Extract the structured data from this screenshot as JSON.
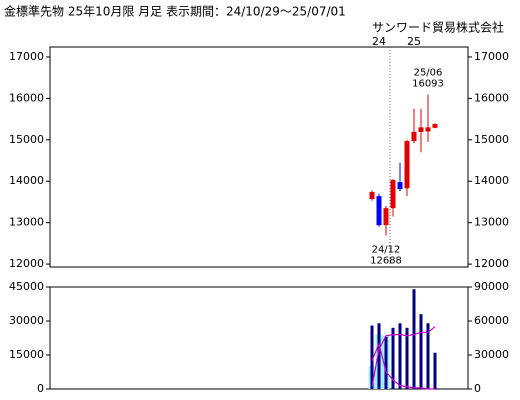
{
  "header": {
    "title": "金標準先物 25年10月限 月足 表示期間：24/10/29～25/07/01",
    "company": "サンワード貿易株式会社"
  },
  "chart_data": [
    {
      "type": "candlestick",
      "categories": [
        null,
        "24",
        null,
        null,
        null,
        null,
        "25",
        null,
        null,
        null
      ],
      "open": [
        13570,
        13640,
        12940,
        13350,
        13980,
        13830,
        14970,
        15190,
        15200,
        15290
      ],
      "high": [
        13780,
        13700,
        13400,
        14050,
        14450,
        15000,
        15750,
        15750,
        16093,
        15400
      ],
      "low": [
        13530,
        12900,
        12688,
        13150,
        13760,
        13640,
        14920,
        14700,
        14950,
        15280
      ],
      "close": [
        13740,
        12940,
        13350,
        14030,
        13810,
        14970,
        15190,
        15300,
        15300,
        15380
      ],
      "up_color": "#e00000",
      "down_color": "#0000ff",
      "ylim": [
        11930,
        17240
      ],
      "yticks": [
        12000,
        13000,
        14000,
        15000,
        16000,
        17000
      ],
      "annotations": [
        {
          "text": "25/06",
          "value": 16093
        },
        {
          "text": "24/12",
          "value": 12688
        }
      ]
    },
    {
      "type": "bar",
      "series": [
        {
          "type": "bar",
          "axis": "y2",
          "color": "#a0f0ff",
          "values": [
            20000,
            48000,
            47000,
            null,
            null,
            null,
            null,
            null,
            null,
            null
          ]
        },
        {
          "type": "bar",
          "color": "#000080",
          "values": [
            28000,
            29000,
            23000,
            27000,
            29000,
            27000,
            44000,
            33000,
            29000,
            16000
          ]
        },
        {
          "type": "line",
          "axis": "y2",
          "color": "#d000d0",
          "values": [
            2000,
            35000,
            47000,
            48000,
            48000,
            47000,
            48000,
            50000,
            50000,
            55000
          ]
        },
        {
          "type": "line",
          "axis": "y2",
          "color": "#d000d0",
          "values": [
            25000,
            40000,
            15000,
            8000,
            3000,
            2000,
            1000,
            1000,
            0,
            0
          ]
        }
      ],
      "ylim": [
        0,
        45000
      ],
      "yticks": [
        0,
        15000,
        30000,
        45000
      ],
      "y2lim": [
        0,
        90000
      ],
      "y2ticks": [
        0,
        30000,
        60000,
        90000
      ],
      "y2_color": "#d000d0"
    }
  ]
}
